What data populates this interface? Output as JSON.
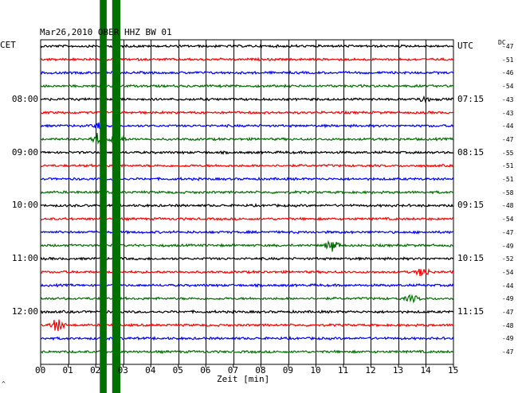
{
  "chart_data": {
    "type": "line",
    "title": "Mar26,2010   OBER HHZ BW 01",
    "left_timezone": "CET",
    "right_timezone": "UTC",
    "dc_label": "DC",
    "xlabel": "Zeit [min]",
    "xlim": [
      0,
      15
    ],
    "x_ticks": [
      "00",
      "01",
      "02",
      "03",
      "04",
      "05",
      "06",
      "07",
      "08",
      "09",
      "10",
      "11",
      "12",
      "13",
      "14",
      "15"
    ],
    "trace_count": 24,
    "trace_minutes": 15,
    "trace_colors": [
      "#000000",
      "#ff0000",
      "#0000ff",
      "#007000"
    ],
    "left_hour_labels": [
      {
        "trace": 4,
        "text": "08:00"
      },
      {
        "trace": 8,
        "text": "09:00"
      },
      {
        "trace": 12,
        "text": "10:00"
      },
      {
        "trace": 16,
        "text": "11:00"
      },
      {
        "trace": 20,
        "text": "12:00"
      }
    ],
    "right_hour_labels": [
      {
        "trace": 0,
        "text": "UTC"
      },
      {
        "trace": 4,
        "text": "07:15"
      },
      {
        "trace": 8,
        "text": "08:15"
      },
      {
        "trace": 12,
        "text": "09:15"
      },
      {
        "trace": 16,
        "text": "10:15"
      },
      {
        "trace": 20,
        "text": "11:15"
      }
    ],
    "dc_offsets": [
      "-47",
      "-51",
      "-46",
      "-54",
      "-43",
      "-43",
      "-44",
      "-47",
      "-55",
      "-51",
      "-51",
      "-58",
      "-48",
      "-54",
      "-47",
      "-49",
      "-52",
      "-54",
      "-44",
      "-49",
      "-47",
      "-48",
      "-49",
      "-47"
    ],
    "events": [
      {
        "trace": 6,
        "minute": 2.2,
        "amplitude": 1.2
      },
      {
        "trace": 7,
        "minute": 2.1,
        "amplitude": 2.0
      },
      {
        "trace": 7,
        "minute": 2.8,
        "amplitude": 1.6
      },
      {
        "trace": 4,
        "minute": 13.9,
        "amplitude": 0.8
      },
      {
        "trace": 15,
        "minute": 10.6,
        "amplitude": 1.8
      },
      {
        "trace": 17,
        "minute": 13.9,
        "amplitude": 1.4
      },
      {
        "trace": 19,
        "minute": 13.5,
        "amplitude": 1.0
      },
      {
        "trace": 21,
        "minute": 0.6,
        "amplitude": 2.0
      }
    ],
    "saturated_bands": [
      {
        "minute_start": 2.15,
        "minute_end": 2.4
      },
      {
        "minute_start": 2.6,
        "minute_end": 2.9
      }
    ],
    "saturated_color": "#007000",
    "grid": true
  },
  "footer_mark": "^"
}
